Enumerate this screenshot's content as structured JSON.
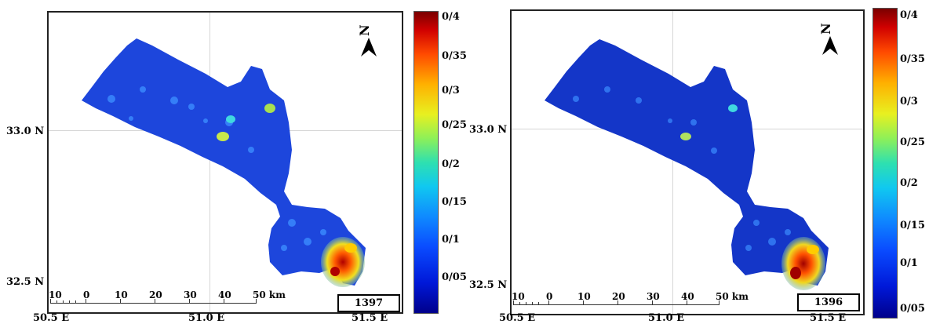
{
  "panels": [
    {
      "year": "1397",
      "lat_labels": [
        "33.0 N",
        "32.5 N"
      ],
      "lon_labels": [
        "50.5 E",
        "51.0 E",
        "51.5 E"
      ],
      "scale": {
        "labels": [
          "10",
          "0",
          "10",
          "20",
          "30",
          "40",
          "50 km"
        ]
      },
      "north": "N",
      "colorbar_labels": [
        "0/4",
        "0/35",
        "0/3",
        "0/25",
        "0/2",
        "0/15",
        "0/1",
        "0/05"
      ]
    },
    {
      "year": "1396",
      "lat_labels": [
        "33.0 N",
        "32.5 N"
      ],
      "lon_labels": [
        "50.5 E",
        "51.0 E",
        "51.5 E"
      ],
      "scale": {
        "labels": [
          "10",
          "0",
          "10",
          "20",
          "30",
          "40",
          "50 km"
        ]
      },
      "north": "N",
      "colorbar_labels": [
        "0/4",
        "0/35",
        "0/3",
        "0/25",
        "0/2",
        "0/15",
        "0/1",
        "0/05"
      ]
    }
  ],
  "colors": {
    "low": "#00008b",
    "mid": "#10c8f0",
    "high": "#7a0000"
  }
}
